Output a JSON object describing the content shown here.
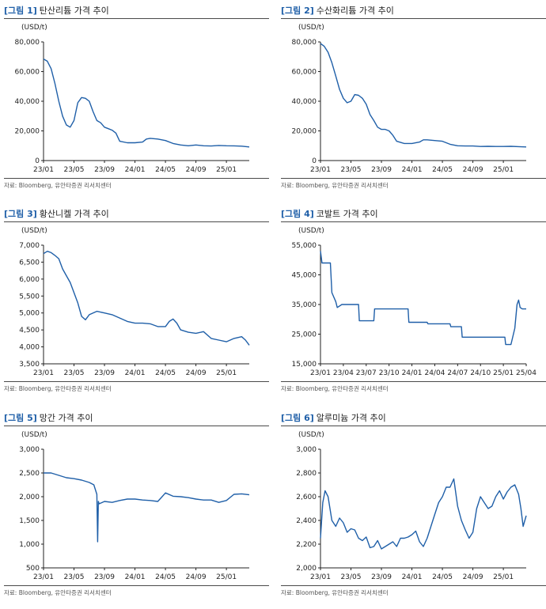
{
  "colors": {
    "line": "#1f5fa8",
    "title_accent": "#1f5fa8",
    "axis": "#222222"
  },
  "charts": [
    {
      "figure_label": "[그림 1]",
      "title": "탄산리튬 가격 추이",
      "source": "자료: Bloomberg, 유안타증권 리서치센터"
    },
    {
      "figure_label": "[그림 2]",
      "title": "수산화리튬 가격 추이",
      "source": "자료: Bloomberg, 유안타증권 리서치센터"
    },
    {
      "figure_label": "[그림 3]",
      "title": "황산니켈 가격 추이",
      "source": "자료: Bloomberg, 유안타증권 리서치센터"
    },
    {
      "figure_label": "[그림 4]",
      "title": "코발트 가격 추이",
      "source": "자료: Bloomberg, 유안타증권 리서치센터"
    },
    {
      "figure_label": "[그림 5]",
      "title": "망간 가격 추이",
      "source": "자료: Bloomberg, 유안타증권 리서치센터"
    },
    {
      "figure_label": "[그림 6]",
      "title": "알루미늄 가격 추이",
      "source": "자료: Bloomberg, 유안타증권 리서치센터"
    }
  ],
  "chart_data": [
    {
      "type": "line",
      "title": "탄산리튬 가격 추이",
      "ylabel": "(USD/t)",
      "xlabel": "",
      "ylim": [
        0,
        80000
      ],
      "xlim": [
        0,
        27
      ],
      "yticks": [
        0,
        20000,
        40000,
        60000,
        80000
      ],
      "yticklabels": [
        "0",
        "20,000",
        "40,000",
        "60,000",
        "80,000"
      ],
      "xticks": [
        0,
        4,
        8,
        12,
        16,
        20,
        24
      ],
      "xticklabels": [
        "23/01",
        "23/05",
        "23/09",
        "24/01",
        "24/05",
        "24/09",
        "25/01"
      ],
      "x": [
        0,
        0.5,
        1,
        1.5,
        2,
        2.5,
        3,
        3.5,
        4,
        4.5,
        5,
        5.5,
        6,
        6.5,
        7,
        7.5,
        8,
        8.5,
        9,
        9.5,
        10,
        11,
        12,
        13,
        13.5,
        14,
        15,
        16,
        17,
        18,
        19,
        20,
        21,
        22,
        23,
        24,
        25,
        26,
        27
      ],
      "y": [
        68500,
        67000,
        62000,
        52000,
        40000,
        30000,
        24000,
        22500,
        27000,
        39000,
        42500,
        42000,
        40000,
        33000,
        27000,
        25500,
        22500,
        21500,
        20500,
        18500,
        13000,
        12000,
        12000,
        12500,
        14500,
        15000,
        14500,
        13500,
        11500,
        10500,
        10000,
        10500,
        10000,
        9800,
        10200,
        10000,
        9900,
        9700,
        9200
      ]
    },
    {
      "type": "line",
      "title": "수산화리튬 가격 추이",
      "ylabel": "(USD/t)",
      "xlabel": "",
      "ylim": [
        0,
        80000
      ],
      "xlim": [
        0,
        27
      ],
      "yticks": [
        0,
        20000,
        40000,
        60000,
        80000
      ],
      "yticklabels": [
        "0",
        "20,000",
        "40,000",
        "60,000",
        "80,000"
      ],
      "xticks": [
        0,
        4,
        8,
        12,
        16,
        20,
        24
      ],
      "xticklabels": [
        "23/01",
        "23/05",
        "23/09",
        "24/01",
        "24/05",
        "24/09",
        "25/01"
      ],
      "x": [
        0,
        0.5,
        1,
        1.5,
        2,
        2.5,
        3,
        3.5,
        4,
        4.5,
        5,
        5.5,
        6,
        6.5,
        7,
        7.5,
        8,
        8.5,
        9,
        9.5,
        10,
        11,
        12,
        13,
        13.5,
        14,
        15,
        16,
        17,
        18,
        19,
        20,
        21,
        22,
        23,
        24,
        25,
        26,
        27
      ],
      "y": [
        79000,
        77000,
        73000,
        66000,
        57000,
        48000,
        42000,
        39000,
        40000,
        44500,
        44000,
        42000,
        38000,
        31000,
        27000,
        22500,
        21000,
        21000,
        20000,
        17000,
        13000,
        11500,
        11500,
        12500,
        14000,
        14000,
        13500,
        13000,
        11000,
        10000,
        9800,
        9800,
        9500,
        9600,
        9500,
        9500,
        9600,
        9400,
        9200
      ]
    },
    {
      "type": "line",
      "title": "황산니켈 가격 추이",
      "ylabel": "(USD/t)",
      "xlabel": "",
      "ylim": [
        3500,
        7000
      ],
      "xlim": [
        0,
        27
      ],
      "yticks": [
        3500,
        4000,
        4500,
        5000,
        5500,
        6000,
        6500,
        7000
      ],
      "yticklabels": [
        "3,500",
        "4,000",
        "4,500",
        "5,000",
        "5,500",
        "6,000",
        "6,500",
        "7,000"
      ],
      "xticks": [
        0,
        4,
        8,
        12,
        16,
        20,
        24
      ],
      "xticklabels": [
        "23/01",
        "23/05",
        "23/09",
        "24/01",
        "24/05",
        "24/09",
        "25/01"
      ],
      "x": [
        0,
        0.5,
        1,
        1.5,
        2,
        2.5,
        3,
        3.5,
        4,
        4.5,
        5,
        5.5,
        6,
        6.5,
        7,
        8,
        9,
        10,
        11,
        12,
        13,
        14,
        15,
        16,
        16.5,
        17,
        17.5,
        18,
        19,
        20,
        21,
        22,
        23,
        24,
        25,
        26,
        26.5,
        27
      ],
      "y": [
        6750,
        6820,
        6780,
        6700,
        6600,
        6300,
        6100,
        5900,
        5600,
        5300,
        4900,
        4800,
        4950,
        5000,
        5050,
        5000,
        4950,
        4850,
        4750,
        4700,
        4700,
        4680,
        4600,
        4600,
        4750,
        4820,
        4700,
        4500,
        4430,
        4400,
        4450,
        4250,
        4200,
        4150,
        4250,
        4300,
        4200,
        4050
      ]
    },
    {
      "type": "line",
      "title": "코발트 가격 추이",
      "ylabel": "(USD/t)",
      "xlabel": "",
      "ylim": [
        15000,
        55000
      ],
      "xlim": [
        0,
        27
      ],
      "yticks": [
        15000,
        25000,
        35000,
        45000,
        55000
      ],
      "yticklabels": [
        "15,000",
        "25,000",
        "35,000",
        "45,000",
        "55,000"
      ],
      "xticks": [
        0,
        3,
        6,
        9,
        12,
        15,
        18,
        21,
        24,
        27
      ],
      "xticklabels": [
        "23/01",
        "23/04",
        "23/07",
        "23/10",
        "24/01",
        "24/04",
        "24/07",
        "24/10",
        "25/01",
        "25/04"
      ],
      "x": [
        0,
        0.2,
        1.3,
        1.5,
        2,
        2.2,
        2.8,
        5,
        5.1,
        7,
        7.1,
        11.5,
        11.6,
        14,
        14.1,
        17,
        17.1,
        18.5,
        18.6,
        24.2,
        24.3,
        25,
        25.5,
        25.8,
        26,
        26.2,
        26.5,
        27
      ],
      "y": [
        53000,
        49000,
        49000,
        39000,
        36000,
        34000,
        35000,
        35000,
        29500,
        29500,
        33500,
        33500,
        29000,
        29000,
        28500,
        28500,
        27500,
        27500,
        24000,
        24000,
        21500,
        21500,
        27000,
        35000,
        36500,
        34000,
        33500,
        33500
      ]
    },
    {
      "type": "line",
      "title": "망간 가격 추이",
      "ylabel": "(USD/t)",
      "xlabel": "",
      "ylim": [
        500,
        3000
      ],
      "xlim": [
        0,
        27
      ],
      "yticks": [
        500,
        1000,
        1500,
        2000,
        2500,
        3000
      ],
      "yticklabels": [
        "500",
        "1,000",
        "1,500",
        "2,000",
        "2,500",
        "3,000"
      ],
      "xticks": [
        0,
        4,
        8,
        12,
        16,
        20,
        24
      ],
      "xticklabels": [
        "23/01",
        "23/05",
        "23/09",
        "24/01",
        "24/05",
        "24/09",
        "25/01"
      ],
      "x": [
        0,
        1,
        2,
        3,
        4,
        5,
        6,
        6.6,
        7,
        7.1,
        7.2,
        7.3,
        8,
        9,
        10,
        11,
        12,
        13,
        14,
        15,
        15.5,
        16,
        17,
        18,
        19,
        20,
        21,
        22,
        23,
        24,
        25,
        26,
        27
      ],
      "y": [
        2500,
        2500,
        2450,
        2400,
        2380,
        2350,
        2300,
        2250,
        2050,
        1050,
        1900,
        1850,
        1900,
        1880,
        1920,
        1950,
        1950,
        1930,
        1920,
        1900,
        1990,
        2080,
        2010,
        2000,
        1980,
        1950,
        1930,
        1930,
        1880,
        1920,
        2050,
        2060,
        2040
      ]
    },
    {
      "type": "line",
      "title": "알루미늄 가격 추이",
      "ylabel": "(USD/t)",
      "xlabel": "",
      "ylim": [
        2000,
        3000
      ],
      "xlim": [
        0,
        27
      ],
      "yticks": [
        2000,
        2200,
        2400,
        2600,
        2800,
        3000
      ],
      "yticklabels": [
        "2,000",
        "2,200",
        "2,400",
        "2,600",
        "2,800",
        "3,000"
      ],
      "xticks": [
        0,
        4,
        8,
        12,
        16,
        20,
        24
      ],
      "xticklabels": [
        "23/01",
        "23/05",
        "23/09",
        "24/01",
        "24/05",
        "24/09",
        "25/01"
      ],
      "x": [
        0,
        0.3,
        0.6,
        1,
        1.5,
        2,
        2.5,
        3,
        3.5,
        4,
        4.5,
        5,
        5.5,
        6,
        6.5,
        7,
        7.5,
        8,
        8.5,
        9,
        9.5,
        10,
        10.5,
        11,
        11.5,
        12,
        12.5,
        13,
        13.5,
        14,
        14.5,
        15,
        15.5,
        16,
        16.5,
        17,
        17.5,
        18,
        18.5,
        19,
        19.5,
        20,
        20.5,
        21,
        21.5,
        22,
        22.5,
        23,
        23.5,
        24,
        24.5,
        25,
        25.5,
        26,
        26.3,
        26.6,
        27
      ],
      "y": [
        2250,
        2550,
        2650,
        2600,
        2400,
        2350,
        2420,
        2380,
        2300,
        2330,
        2320,
        2250,
        2230,
        2260,
        2170,
        2180,
        2230,
        2160,
        2180,
        2200,
        2220,
        2180,
        2250,
        2250,
        2260,
        2280,
        2310,
        2220,
        2180,
        2250,
        2350,
        2450,
        2550,
        2600,
        2680,
        2680,
        2750,
        2520,
        2400,
        2320,
        2250,
        2300,
        2500,
        2600,
        2550,
        2500,
        2520,
        2600,
        2650,
        2580,
        2640,
        2680,
        2700,
        2620,
        2500,
        2350,
        2440
      ]
    }
  ]
}
